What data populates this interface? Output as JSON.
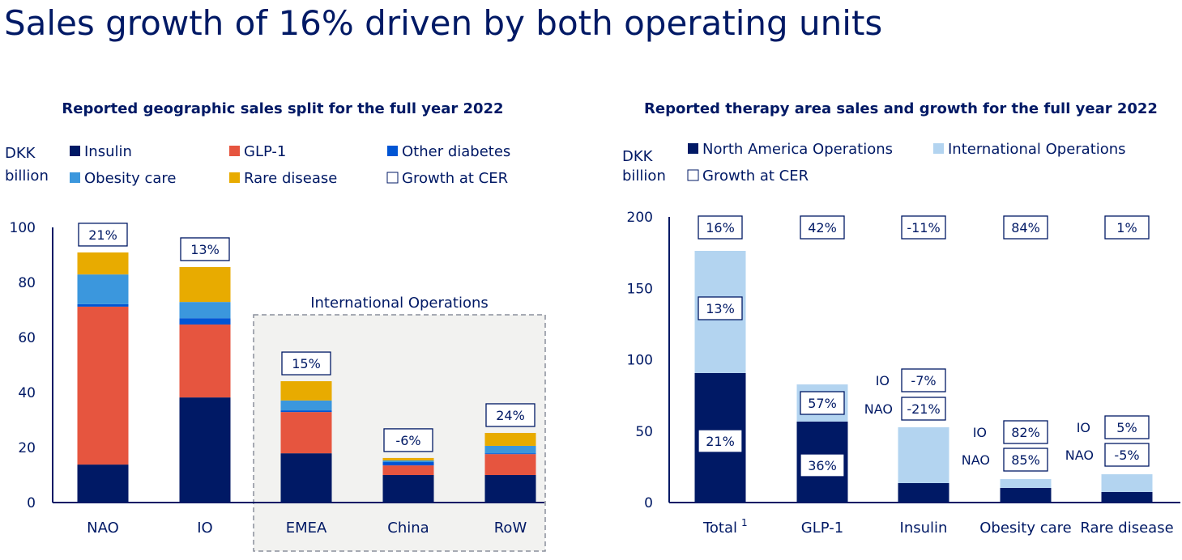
{
  "title": "Sales growth of 16% driven by both operating units",
  "colors": {
    "navy": "#001965",
    "glp1": "#e6553f",
    "other_diabetes": "#0055d4",
    "obesity": "#3b97dd",
    "rare": "#e8ab00",
    "io_light": "#b3d4f0"
  },
  "chart_data": [
    {
      "type": "bar",
      "stacked": true,
      "title": "Reported geographic sales split for the full year 2022",
      "ylabel": [
        "DKK",
        "billion"
      ],
      "ylim": [
        0,
        100
      ],
      "yticks": [
        0,
        20,
        40,
        60,
        80,
        100
      ],
      "categories": [
        "NAO",
        "IO",
        "EMEA",
        "China",
        "RoW"
      ],
      "series": [
        {
          "name": "Insulin",
          "color": "#001965",
          "values": [
            13.8,
            38.2,
            17.9,
            10.0,
            10.0
          ]
        },
        {
          "name": "GLP-1",
          "color": "#e6553f",
          "values": [
            57.4,
            26.5,
            15.0,
            3.5,
            7.6
          ]
        },
        {
          "name": "Other diabetes",
          "color": "#0055d4",
          "values": [
            0.9,
            2.3,
            0.6,
            1.2,
            0.3
          ]
        },
        {
          "name": "Obesity care",
          "color": "#3b97dd",
          "values": [
            10.8,
            5.9,
            3.6,
            0.6,
            2.7
          ]
        },
        {
          "name": "Rare disease",
          "color": "#e8ab00",
          "values": [
            8.0,
            12.7,
            7.0,
            0.9,
            4.7
          ]
        }
      ],
      "legend": [
        "Insulin",
        "GLP-1",
        "Other diabetes",
        "Obesity care",
        "Rare disease",
        "Growth at CER"
      ],
      "growth_labels": [
        "21%",
        "13%",
        "15%",
        "-6%",
        "24%"
      ],
      "group_box_label": "International Operations",
      "legend_placement": "top",
      "grid": false
    },
    {
      "type": "bar",
      "stacked": true,
      "title": "Reported therapy area sales and growth for the full year 2022",
      "ylabel": [
        "DKK",
        "billion"
      ],
      "ylim": [
        0,
        200
      ],
      "yticks": [
        0,
        50,
        100,
        150,
        200
      ],
      "categories": [
        "Total",
        "GLP-1",
        "Insulin",
        "Obesity care",
        "Rare disease"
      ],
      "category_footnote": "1",
      "series": [
        {
          "name": "North America Operations",
          "color": "#001965",
          "values": [
            90.7,
            56.7,
            13.6,
            10.2,
            7.4
          ]
        },
        {
          "name": "International Operations",
          "color": "#b3d4f0",
          "values": [
            85.5,
            26.0,
            39.1,
            6.2,
            12.4
          ]
        }
      ],
      "legend": [
        "North America Operations",
        "International Operations",
        "Growth at CER"
      ],
      "growth_total": [
        "16%",
        "42%",
        "-11%",
        "84%",
        "1%"
      ],
      "growth_io": [
        "13%",
        "57%",
        "-7%",
        "82%",
        "5%"
      ],
      "growth_nao": [
        "21%",
        "36%",
        "-21%",
        "85%",
        "-5%"
      ],
      "side_labels": {
        "io": "IO",
        "nao": "NAO"
      },
      "legend_placement": "top",
      "grid": false
    }
  ]
}
